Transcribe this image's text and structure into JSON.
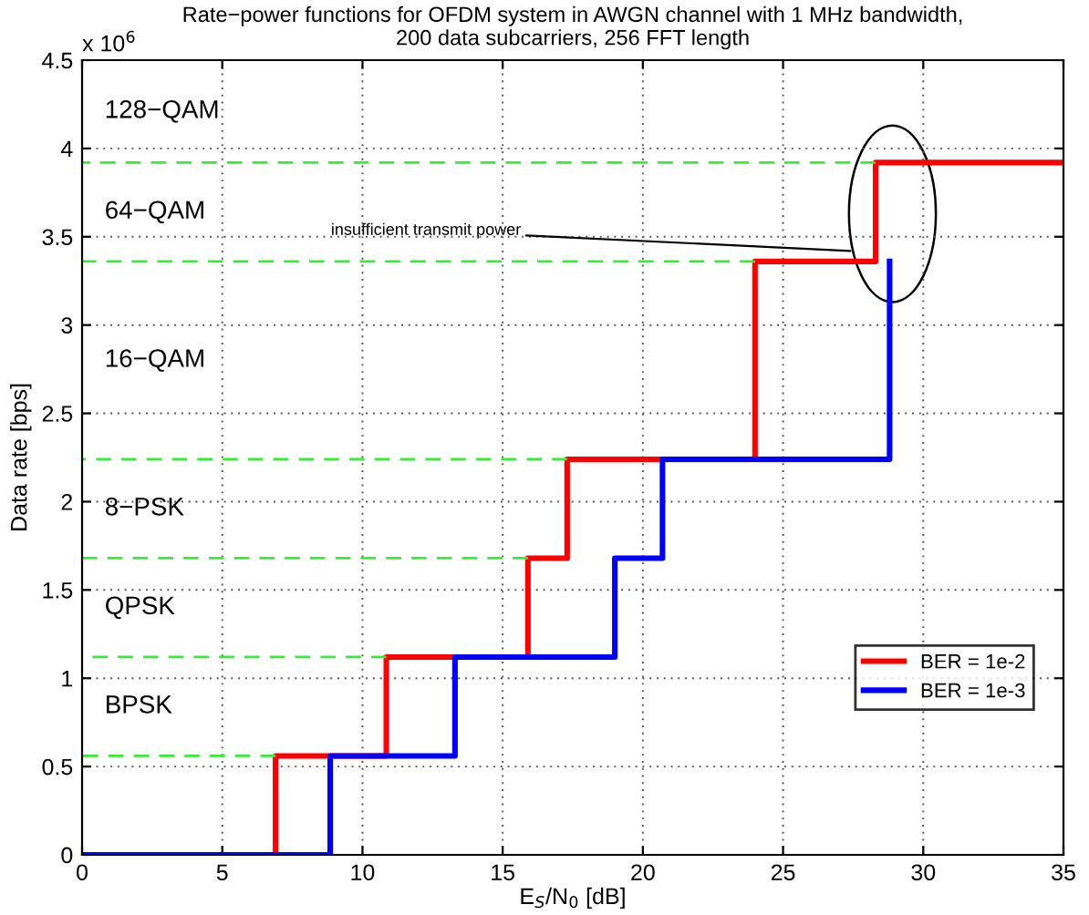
{
  "chart_data": {
    "type": "step",
    "title": "Rate−power functions for OFDM system in AWGN channel with 1 MHz bandwidth,\n200 data subcarriers, 256 FFT length",
    "xlabel": "E$_{S}$/N$_{0}$ [dB]",
    "ylabel": "Data rate [bps]",
    "series": [
      {
        "name": "BER = 1e-2",
        "color": "#ff0000",
        "x": [
          0,
          6.9,
          10.85,
          15.9,
          17.3,
          24.0,
          28.3,
          35
        ],
        "values": [
          0,
          0.56,
          1.12,
          1.68,
          2.24,
          3.36,
          3.92,
          3.92
        ]
      },
      {
        "name": "BER = 1e-3",
        "color": "#0000ff",
        "x": [
          0,
          8.85,
          13.3,
          19.0,
          20.7,
          28.8
        ],
        "values": [
          0,
          0.56,
          1.12,
          1.68,
          2.24,
          3.36
        ]
      },
      {
        "type": "line",
        "color": "#33ee33",
        "line_style": "dashed",
        "x": [
          0,
          6.9
        ],
        "values": [
          0.56,
          0.56
        ]
      },
      {
        "type": "line",
        "color": "#33ee33",
        "line_style": "dashed",
        "x": [
          0,
          10.85
        ],
        "values": [
          1.12,
          1.12
        ]
      },
      {
        "type": "line",
        "color": "#33ee33",
        "line_style": "dashed",
        "x": [
          0,
          15.9
        ],
        "values": [
          1.68,
          1.68
        ]
      },
      {
        "type": "line",
        "color": "#33ee33",
        "line_style": "dashed",
        "x": [
          0,
          17.3
        ],
        "values": [
          2.24,
          2.24
        ]
      },
      {
        "type": "line",
        "color": "#33ee33",
        "line_style": "dashed",
        "x": [
          0,
          24.0
        ],
        "values": [
          3.36,
          3.36
        ]
      },
      {
        "type": "line",
        "color": "#33ee33",
        "line_style": "dashed",
        "x": [
          0,
          28.3
        ],
        "values": [
          3.92,
          3.92
        ]
      }
    ],
    "annotations": [
      "BPSK",
      "QPSK",
      "8−PSK",
      "16−QAM",
      "64−QAM",
      "128−QAM",
      {
        "text": "insufficient transmit power",
        "x": 27.4,
        "y": 3.42
      },
      "x 10$^{6}$"
    ],
    "xlim": [
      0,
      35
    ],
    "xticks": [
      0,
      5,
      10,
      15,
      20,
      25,
      30,
      35
    ],
    "ylim": [
      0,
      4.5
    ],
    "yticks": [
      0,
      0.5,
      1,
      1.5,
      2,
      2.5,
      3,
      3.5,
      4,
      4.5
    ],
    "grid": true,
    "legend": "bottom right",
    "line_style": "solid",
    "marker": "none"
  }
}
